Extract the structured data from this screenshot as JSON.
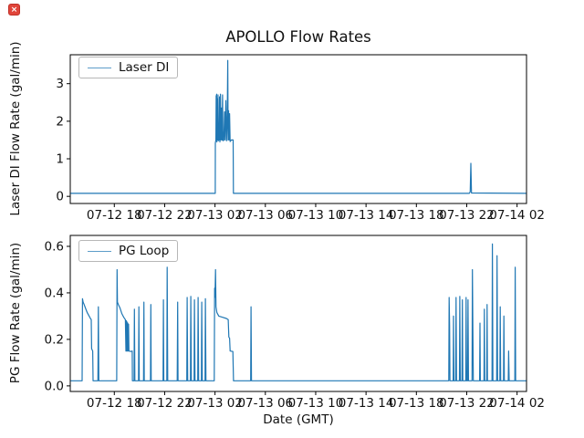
{
  "icons": {
    "broken_image_glyph": "×",
    "broken_image_color": "#e0453a"
  },
  "figure": {
    "title": "APOLLO Flow Rates",
    "background": "#ffffff",
    "text_color": "#111111",
    "accent_line_color": "#1f77b4"
  },
  "chart_data": [
    {
      "type": "line",
      "title": "APOLLO Flow Rates",
      "ylabel": "Laser DI Flow Rate (gal/min)",
      "xlabel": "",
      "legend": [
        "Laser DI"
      ],
      "legend_position": "upper left",
      "line_color": "#1f77b4",
      "grid": false,
      "x_unit": "hours since 07-12 14:00 GMT",
      "xlim_hours": [
        0.5,
        36.75
      ],
      "ylim": [
        -0.19,
        3.77
      ],
      "yticks": [
        {
          "value": 0,
          "label": "0"
        },
        {
          "value": 1,
          "label": "1"
        },
        {
          "value": 2,
          "label": "2"
        },
        {
          "value": 3,
          "label": "3"
        }
      ],
      "xticks": [
        {
          "hour": 4,
          "label": "07-12 18"
        },
        {
          "hour": 8,
          "label": "07-12 22"
        },
        {
          "hour": 12,
          "label": "07-13 02"
        },
        {
          "hour": 16,
          "label": "07-13 06"
        },
        {
          "hour": 20,
          "label": "07-13 10"
        },
        {
          "hour": 24,
          "label": "07-13 14"
        },
        {
          "hour": 28,
          "label": "07-13 18"
        },
        {
          "hour": 32,
          "label": "07-13 22"
        },
        {
          "hour": 36,
          "label": "07-14 02"
        }
      ],
      "series": [
        {
          "name": "Laser DI",
          "baseline": 0.08,
          "points": [
            [
              0.53,
              0.08
            ],
            [
              11.9,
              0.08
            ],
            [
              12.02,
              0.08
            ],
            [
              12.03,
              1.42
            ],
            [
              12.07,
              1.5
            ],
            [
              12.09,
              2.68
            ],
            [
              12.11,
              1.5
            ],
            [
              12.13,
              2.72
            ],
            [
              12.15,
              1.45
            ],
            [
              12.18,
              2.6
            ],
            [
              12.21,
              1.5
            ],
            [
              12.24,
              2.7
            ],
            [
              12.27,
              1.48
            ],
            [
              12.3,
              1.95
            ],
            [
              12.33,
              1.5
            ],
            [
              12.36,
              2.65
            ],
            [
              12.39,
              1.45
            ],
            [
              12.43,
              2.72
            ],
            [
              12.47,
              1.5
            ],
            [
              12.52,
              2.35
            ],
            [
              12.56,
              1.5
            ],
            [
              12.6,
              2.7
            ],
            [
              12.64,
              1.48
            ],
            [
              12.7,
              1.5
            ],
            [
              12.76,
              2.25
            ],
            [
              12.8,
              1.5
            ],
            [
              12.86,
              2.55
            ],
            [
              12.92,
              1.48
            ],
            [
              12.97,
              2.0
            ],
            [
              13.01,
              3.62
            ],
            [
              13.04,
              1.5
            ],
            [
              13.08,
              2.28
            ],
            [
              13.12,
              1.5
            ],
            [
              13.16,
              2.2
            ],
            [
              13.2,
              1.46
            ],
            [
              13.3,
              1.5
            ],
            [
              13.44,
              1.5
            ],
            [
              13.46,
              0.08
            ],
            [
              32.2,
              0.08
            ],
            [
              32.28,
              0.12
            ],
            [
              32.33,
              0.88
            ],
            [
              32.38,
              0.09
            ],
            [
              36.72,
              0.08
            ]
          ]
        }
      ]
    },
    {
      "type": "line",
      "title": "",
      "ylabel": "PG Flow Rate (gal/min)",
      "xlabel": "Date (GMT)",
      "legend": [
        "PG Loop"
      ],
      "legend_position": "upper left",
      "line_color": "#1f77b4",
      "grid": false,
      "x_unit": "hours since 07-12 14:00 GMT",
      "xlim_hours": [
        0.5,
        36.75
      ],
      "ylim": [
        -0.024,
        0.647
      ],
      "yticks": [
        {
          "value": 0.0,
          "label": "0.0"
        },
        {
          "value": 0.2,
          "label": "0.2"
        },
        {
          "value": 0.4,
          "label": "0.4"
        },
        {
          "value": 0.6,
          "label": "0.6"
        }
      ],
      "xticks": [
        {
          "hour": 4,
          "label": "07-12 18"
        },
        {
          "hour": 8,
          "label": "07-12 22"
        },
        {
          "hour": 12,
          "label": "07-13 02"
        },
        {
          "hour": 16,
          "label": "07-13 06"
        },
        {
          "hour": 20,
          "label": "07-13 10"
        },
        {
          "hour": 24,
          "label": "07-13 14"
        },
        {
          "hour": 28,
          "label": "07-13 18"
        },
        {
          "hour": 32,
          "label": "07-13 22"
        },
        {
          "hour": 36,
          "label": "07-14 02"
        }
      ],
      "series": [
        {
          "name": "PG Loop",
          "baseline": 0.022,
          "points": [
            [
              0.53,
              0.022
            ],
            [
              1.44,
              0.022
            ],
            [
              1.47,
              0.375
            ],
            [
              1.52,
              0.36
            ],
            [
              1.6,
              0.35
            ],
            [
              1.7,
              0.335
            ],
            [
              1.85,
              0.315
            ],
            [
              2.0,
              0.3
            ],
            [
              2.1,
              0.29
            ],
            [
              2.17,
              0.285
            ],
            [
              2.2,
              0.16
            ],
            [
              2.28,
              0.15
            ],
            [
              2.31,
              0.022
            ],
            [
              2.7,
              0.022
            ],
            [
              2.73,
              0.34
            ],
            [
              2.77,
              0.022
            ],
            [
              4.19,
              0.022
            ],
            [
              4.22,
              0.5
            ],
            [
              4.25,
              0.36
            ],
            [
              4.32,
              0.35
            ],
            [
              4.45,
              0.335
            ],
            [
              4.6,
              0.31
            ],
            [
              4.75,
              0.295
            ],
            [
              4.88,
              0.285
            ],
            [
              4.92,
              0.15
            ],
            [
              4.95,
              0.28
            ],
            [
              4.98,
              0.15
            ],
            [
              5.01,
              0.275
            ],
            [
              5.04,
              0.15
            ],
            [
              5.07,
              0.27
            ],
            [
              5.1,
              0.15
            ],
            [
              5.13,
              0.265
            ],
            [
              5.16,
              0.15
            ],
            [
              5.3,
              0.148
            ],
            [
              5.42,
              0.15
            ],
            [
              5.44,
              0.022
            ],
            [
              5.57,
              0.022
            ],
            [
              5.6,
              0.33
            ],
            [
              5.63,
              0.022
            ],
            [
              5.92,
              0.022
            ],
            [
              5.95,
              0.34
            ],
            [
              5.98,
              0.022
            ],
            [
              6.32,
              0.022
            ],
            [
              6.35,
              0.36
            ],
            [
              6.38,
              0.022
            ],
            [
              6.87,
              0.022
            ],
            [
              6.9,
              0.35
            ],
            [
              6.93,
              0.022
            ],
            [
              7.87,
              0.022
            ],
            [
              7.9,
              0.37
            ],
            [
              7.93,
              0.022
            ],
            [
              8.17,
              0.022
            ],
            [
              8.2,
              0.51
            ],
            [
              8.24,
              0.022
            ],
            [
              9.0,
              0.022
            ],
            [
              9.03,
              0.36
            ],
            [
              9.06,
              0.022
            ],
            [
              9.76,
              0.022
            ],
            [
              9.79,
              0.38
            ],
            [
              9.83,
              0.022
            ],
            [
              10.05,
              0.022
            ],
            [
              10.08,
              0.385
            ],
            [
              10.12,
              0.022
            ],
            [
              10.34,
              0.022
            ],
            [
              10.37,
              0.37
            ],
            [
              10.41,
              0.022
            ],
            [
              10.63,
              0.022
            ],
            [
              10.66,
              0.38
            ],
            [
              10.7,
              0.022
            ],
            [
              10.92,
              0.022
            ],
            [
              10.95,
              0.36
            ],
            [
              10.99,
              0.022
            ],
            [
              11.21,
              0.022
            ],
            [
              11.24,
              0.375
            ],
            [
              11.28,
              0.022
            ],
            [
              11.94,
              0.022
            ],
            [
              11.97,
              0.42
            ],
            [
              12.0,
              0.38
            ],
            [
              12.04,
              0.5
            ],
            [
              12.08,
              0.34
            ],
            [
              12.15,
              0.315
            ],
            [
              12.3,
              0.3
            ],
            [
              12.6,
              0.295
            ],
            [
              12.9,
              0.29
            ],
            [
              13.05,
              0.285
            ],
            [
              13.1,
              0.21
            ],
            [
              13.16,
              0.205
            ],
            [
              13.2,
              0.15
            ],
            [
              13.42,
              0.148
            ],
            [
              13.47,
              0.022
            ],
            [
              14.83,
              0.022
            ],
            [
              14.86,
              0.34
            ],
            [
              14.9,
              0.022
            ],
            [
              26.5,
              0.022
            ],
            [
              30.57,
              0.022
            ],
            [
              30.6,
              0.38
            ],
            [
              30.64,
              0.26
            ],
            [
              30.67,
              0.022
            ],
            [
              30.92,
              0.022
            ],
            [
              30.95,
              0.3
            ],
            [
              30.98,
              0.022
            ],
            [
              31.12,
              0.022
            ],
            [
              31.15,
              0.38
            ],
            [
              31.19,
              0.022
            ],
            [
              31.42,
              0.022
            ],
            [
              31.45,
              0.385
            ],
            [
              31.49,
              0.022
            ],
            [
              31.62,
              0.022
            ],
            [
              31.65,
              0.37
            ],
            [
              31.69,
              0.022
            ],
            [
              31.92,
              0.022
            ],
            [
              31.95,
              0.38
            ],
            [
              31.99,
              0.022
            ],
            [
              32.07,
              0.022
            ],
            [
              32.1,
              0.37
            ],
            [
              32.14,
              0.022
            ],
            [
              32.42,
              0.022
            ],
            [
              32.45,
              0.5
            ],
            [
              32.48,
              0.3
            ],
            [
              32.52,
              0.022
            ],
            [
              33.02,
              0.022
            ],
            [
              33.05,
              0.27
            ],
            [
              33.08,
              0.022
            ],
            [
              33.37,
              0.022
            ],
            [
              33.4,
              0.33
            ],
            [
              33.43,
              0.022
            ],
            [
              33.59,
              0.022
            ],
            [
              33.62,
              0.35
            ],
            [
              33.65,
              0.022
            ],
            [
              34.01,
              0.022
            ],
            [
              34.04,
              0.61
            ],
            [
              34.08,
              0.022
            ],
            [
              34.38,
              0.022
            ],
            [
              34.41,
              0.56
            ],
            [
              34.45,
              0.022
            ],
            [
              34.63,
              0.022
            ],
            [
              34.66,
              0.34
            ],
            [
              34.7,
              0.022
            ],
            [
              34.92,
              0.022
            ],
            [
              34.95,
              0.3
            ],
            [
              34.99,
              0.022
            ],
            [
              35.3,
              0.022
            ],
            [
              35.33,
              0.15
            ],
            [
              35.37,
              0.022
            ],
            [
              35.82,
              0.022
            ],
            [
              35.85,
              0.51
            ],
            [
              35.89,
              0.022
            ],
            [
              36.72,
              0.022
            ]
          ]
        }
      ]
    }
  ]
}
